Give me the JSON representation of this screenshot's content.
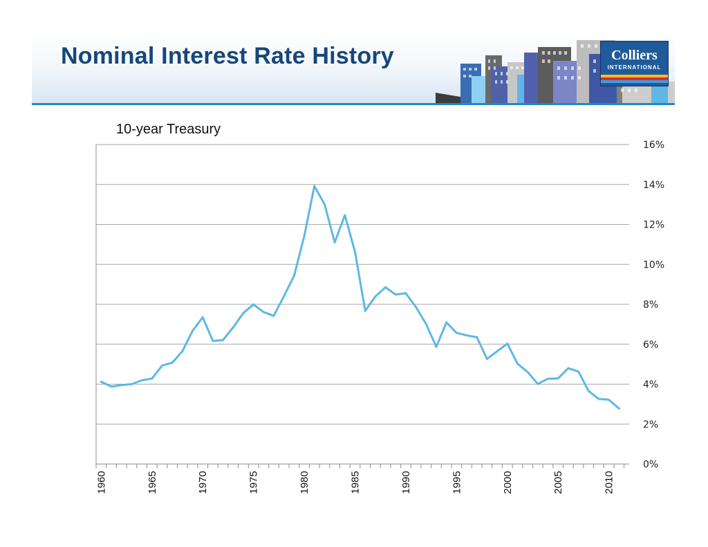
{
  "header": {
    "title": "Nominal Interest Rate History",
    "logo": {
      "name": "Colliers",
      "subtitle": "INTERNATIONAL",
      "stripe_colors": [
        "#f2c21a",
        "#e0283b",
        "#3aa0e0"
      ]
    }
  },
  "colors": {
    "title": "#17477a",
    "header_rule": "#1e88c9",
    "line": "#5db8e5",
    "gridline": "#a6a6a6"
  },
  "chart_data": {
    "type": "line",
    "title": "10-year Treasury",
    "xlabel": "",
    "ylabel": "",
    "x": [
      1960,
      1961,
      1962,
      1963,
      1964,
      1965,
      1966,
      1967,
      1968,
      1969,
      1970,
      1971,
      1972,
      1973,
      1974,
      1975,
      1976,
      1977,
      1978,
      1979,
      1980,
      1981,
      1982,
      1983,
      1984,
      1985,
      1986,
      1987,
      1988,
      1989,
      1990,
      1991,
      1992,
      1993,
      1994,
      1995,
      1996,
      1997,
      1998,
      1999,
      2000,
      2001,
      2002,
      2003,
      2004,
      2005,
      2006,
      2007,
      2008,
      2009,
      2010,
      2011
    ],
    "values": [
      4.12,
      3.88,
      3.95,
      4.0,
      4.19,
      4.28,
      4.93,
      5.07,
      5.65,
      6.67,
      7.35,
      6.16,
      6.21,
      6.85,
      7.56,
      7.99,
      7.61,
      7.42,
      8.41,
      9.43,
      11.43,
      13.92,
      13.01,
      11.1,
      12.46,
      10.62,
      7.67,
      8.39,
      8.85,
      8.49,
      8.55,
      7.86,
      7.01,
      5.87,
      7.09,
      6.57,
      6.44,
      6.35,
      5.26,
      5.65,
      6.03,
      5.02,
      4.61,
      4.01,
      4.27,
      4.29,
      4.8,
      4.63,
      3.66,
      3.26,
      3.22,
      2.78
    ],
    "x_tick_labels": [
      "1960",
      "1965",
      "1970",
      "1975",
      "1980",
      "1985",
      "1990",
      "1995",
      "2000",
      "2005",
      "2010"
    ],
    "y_tick_labels": [
      "0%",
      "2%",
      "4%",
      "6%",
      "8%",
      "10%",
      "12%",
      "14%",
      "16%"
    ],
    "ylim": [
      0,
      16
    ],
    "xlim": [
      1960,
      2011
    ],
    "y_axis_side": "right",
    "grid": true
  }
}
